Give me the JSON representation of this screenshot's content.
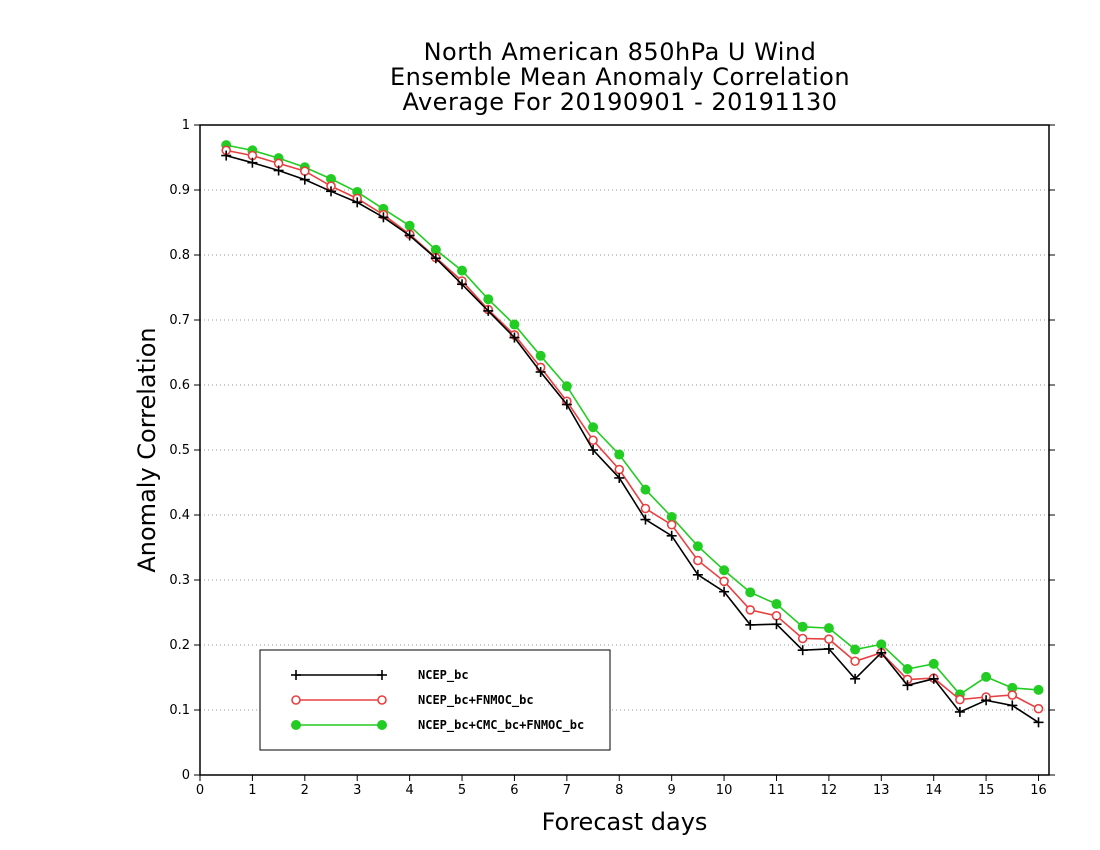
{
  "chart_data": {
    "type": "line",
    "title": [
      "North American 850hPa U Wind",
      "Ensemble Mean Anomaly Correlation",
      "Average For 20190901 - 20191130"
    ],
    "xlabel": "Forecast days",
    "ylabel": "Anomaly Correlation",
    "xlim": [
      0,
      16.2
    ],
    "ylim": [
      0,
      1
    ],
    "xticks": [
      0,
      1,
      2,
      3,
      4,
      5,
      6,
      7,
      8,
      9,
      10,
      11,
      12,
      13,
      14,
      15,
      16
    ],
    "yticks": [
      0,
      0.1,
      0.2,
      0.3,
      0.4,
      0.5,
      0.6,
      0.7,
      0.8,
      0.9,
      1
    ],
    "grid": "horizontal dotted",
    "legend_position": "bottom-left",
    "x": [
      0.5,
      1,
      1.5,
      2,
      2.5,
      3,
      3.5,
      4,
      4.5,
      5,
      5.5,
      6,
      6.5,
      7,
      7.5,
      8,
      8.5,
      9,
      9.5,
      10,
      10.5,
      11,
      11.5,
      12,
      12.5,
      13,
      13.5,
      14,
      14.5,
      15,
      15.5,
      16
    ],
    "series": [
      {
        "name": "NCEP_bc",
        "color": "#000000",
        "marker": "plus",
        "values": [
          0.953,
          0.942,
          0.93,
          0.916,
          0.898,
          0.881,
          0.858,
          0.83,
          0.795,
          0.755,
          0.714,
          0.673,
          0.62,
          0.57,
          0.5,
          0.457,
          0.393,
          0.368,
          0.308,
          0.282,
          0.231,
          0.232,
          0.192,
          0.194,
          0.148,
          0.188,
          0.138,
          0.148,
          0.097,
          0.115,
          0.107,
          0.081
        ]
      },
      {
        "name": "NCEP_bc+FNMOC_bc",
        "color": "#e84040",
        "marker": "open-circle",
        "values": [
          0.961,
          0.953,
          0.941,
          0.929,
          0.906,
          0.887,
          0.862,
          0.832,
          0.796,
          0.76,
          0.716,
          0.677,
          0.627,
          0.575,
          0.515,
          0.47,
          0.41,
          0.385,
          0.33,
          0.298,
          0.254,
          0.245,
          0.21,
          0.209,
          0.175,
          0.188,
          0.147,
          0.149,
          0.116,
          0.12,
          0.123,
          0.102
        ]
      },
      {
        "name": "NCEP_bc+CMC_bc+FNMOC_bc",
        "color": "#22cc22",
        "marker": "filled-circle",
        "values": [
          0.969,
          0.961,
          0.949,
          0.935,
          0.917,
          0.897,
          0.871,
          0.845,
          0.808,
          0.776,
          0.732,
          0.693,
          0.645,
          0.598,
          0.535,
          0.493,
          0.439,
          0.397,
          0.352,
          0.315,
          0.281,
          0.263,
          0.228,
          0.226,
          0.193,
          0.201,
          0.163,
          0.171,
          0.124,
          0.151,
          0.134,
          0.131
        ]
      }
    ]
  }
}
